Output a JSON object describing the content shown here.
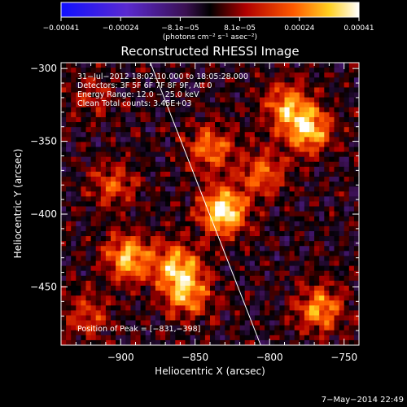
{
  "chart_data": {
    "type": "heatmap",
    "title": "Reconstructed RHESSI Image",
    "xlabel": "Heliocentric X (arcsec)",
    "ylabel": "Heliocentric Y (arcsec)",
    "xlim": [
      -940,
      -740
    ],
    "ylim": [
      -490,
      -296
    ],
    "x_ticks": [
      -900,
      -850,
      -800,
      -750
    ],
    "y_ticks": [
      -300,
      -350,
      -400,
      -450
    ],
    "x_tick_labels": [
      "−900",
      "−850",
      "−800",
      "−750"
    ],
    "y_tick_labels": [
      "−300",
      "−350",
      "−400",
      "−450"
    ],
    "colorbar": {
      "range": [
        -0.00041,
        0.00041
      ],
      "tick_labels": [
        "−0.00041",
        "−0.00024",
        "−8.1e−05",
        "8.1e−05",
        "0.00024",
        "0.00041"
      ],
      "unit_label": "(photons cm⁻² s⁻¹ asec⁻²)"
    },
    "info_lines": [
      "31−Jul−2012 18:02:10.000 to 18:05:28.000",
      "Detectors: 3F 5F 6F 7F 8F 9F, Att 0",
      "Energy Range: 12.0 − 25.0 keV",
      "Clean     Total counts: 3.45E+03"
    ],
    "peak_label": "Position of Peak = [−831,−398]",
    "peak": [
      -831,
      -398
    ],
    "limb_line": [
      [
        -880,
        -296
      ],
      [
        -806,
        -490
      ]
    ],
    "sources": [
      {
        "x": -831,
        "y": -398,
        "value": 0.00041
      },
      {
        "x": -774,
        "y": -342,
        "value": 0.00034
      },
      {
        "x": -788,
        "y": -325,
        "value": 0.00026
      },
      {
        "x": -895,
        "y": -430,
        "value": 0.00032
      },
      {
        "x": -863,
        "y": -436,
        "value": 0.0003
      },
      {
        "x": -855,
        "y": -455,
        "value": 0.00028
      },
      {
        "x": -840,
        "y": -355,
        "value": 0.00024
      },
      {
        "x": -805,
        "y": -372,
        "value": 0.00022
      },
      {
        "x": -905,
        "y": -380,
        "value": 0.00018
      },
      {
        "x": -766,
        "y": -465,
        "value": 0.00028
      },
      {
        "x": -922,
        "y": -470,
        "value": 0.00016
      },
      {
        "x": -920,
        "y": -320,
        "value": 0.00012
      }
    ],
    "grid": false
  },
  "timestamp": "7−May−2014 22:49"
}
